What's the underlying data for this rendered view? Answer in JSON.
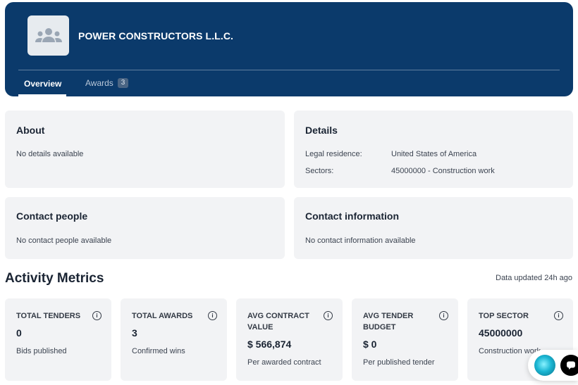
{
  "header": {
    "company_name": "POWER CONSTRUCTORS L.L.C.",
    "logo_icon": "users-group-icon",
    "tabs": [
      {
        "label": "Overview",
        "active": true
      },
      {
        "label": "Awards",
        "badge": "3",
        "active": false
      }
    ]
  },
  "about": {
    "title": "About",
    "text": "No details available"
  },
  "details": {
    "title": "Details",
    "rows": [
      {
        "label": "Legal residence:",
        "value": "United States of America"
      },
      {
        "label": "Sectors:",
        "value": "45000000 - Construction work"
      }
    ]
  },
  "contact_people": {
    "title": "Contact people",
    "text": "No contact people available"
  },
  "contact_info": {
    "title": "Contact information",
    "text": "No contact information available"
  },
  "metrics": {
    "title": "Activity Metrics",
    "updated": "Data updated 24h ago",
    "cards": [
      {
        "label": "TOTAL TENDERS",
        "value": "0",
        "sub": "Bids published"
      },
      {
        "label": "TOTAL AWARDS",
        "value": "3",
        "sub": "Confirmed wins"
      },
      {
        "label": "AVG CONTRACT VALUE",
        "value": "$ 566,874",
        "sub": "Per awarded contract"
      },
      {
        "label": "AVG TENDER BUDGET",
        "value": "$ 0",
        "sub": "Per published tender"
      },
      {
        "label": "TOP SECTOR",
        "value": "45000000",
        "sub": "Construction work"
      }
    ],
    "info_glyph": "i"
  },
  "colors": {
    "header_bg": "#0b3a6b",
    "card_bg": "#f2f3f5"
  }
}
